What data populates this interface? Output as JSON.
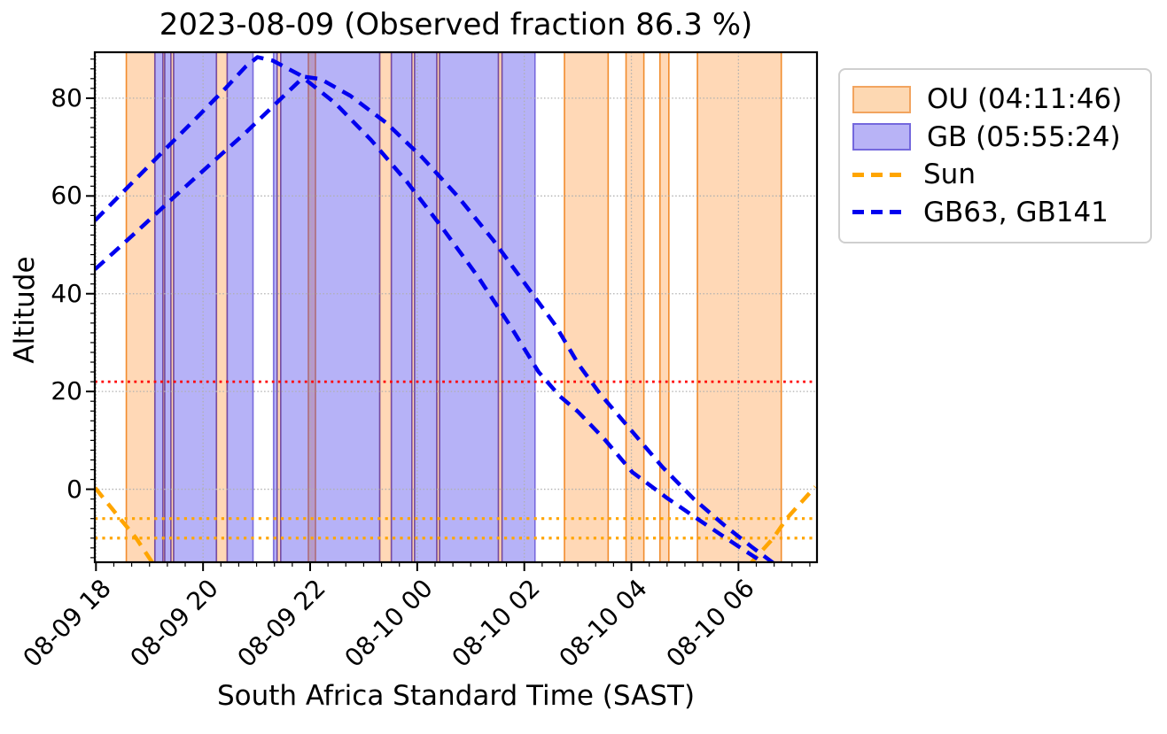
{
  "figure": {
    "title": "2023-08-09 (Observed fraction 86.3 %)",
    "xlabel": "South Africa Standard Time (SAST)",
    "ylabel": "Altitude"
  },
  "legend": {
    "items": [
      {
        "label": "OU (04:11:46)",
        "swatch": "patch",
        "fill": "#fdd8b2",
        "edge": "#f2a45f"
      },
      {
        "label": "GB (05:55:24)",
        "swatch": "patch",
        "fill": "#b8b3f6",
        "edge": "#7468dd"
      },
      {
        "label": "Sun",
        "swatch": "dashed-line",
        "color": "#ffa500"
      },
      {
        "label": "GB63, GB141",
        "swatch": "dashed-line",
        "color": "#0101ef"
      }
    ]
  },
  "chart_data": {
    "type": "area",
    "title": "2023-08-09 (Observed fraction 86.3 %)",
    "observed_fraction_percent": 86.3,
    "xlabel": "South Africa Standard Time (SAST)",
    "ylabel": "Altitude",
    "x_axis": {
      "ticks": [
        {
          "t_min": 0,
          "label": "08-09 18"
        },
        {
          "t_min": 120,
          "label": "08-09 20"
        },
        {
          "t_min": 240,
          "label": "08-09 22"
        },
        {
          "t_min": 360,
          "label": "08-10 00"
        },
        {
          "t_min": 480,
          "label": "08-10 02"
        },
        {
          "t_min": 600,
          "label": "08-10 04"
        },
        {
          "t_min": 720,
          "label": "08-10 06"
        }
      ],
      "minor_step_min": 20,
      "range_min_since_1800": [
        -1.3,
        808
      ]
    },
    "y_axis": {
      "ticks": [
        0,
        20,
        40,
        60,
        80
      ],
      "minor_step": 2,
      "range": [
        -14.93,
        89.4
      ]
    },
    "grid": {
      "on": true,
      "style": "dotted",
      "color": "#b0b0b0"
    },
    "ou_total": "04:11:46",
    "gb_total": "05:55:24",
    "ou_windows": [
      {
        "start": "18:34",
        "end": "19:06"
      },
      {
        "start": "19:15",
        "end": "19:17"
      },
      {
        "start": "19:24",
        "end": "19:27"
      },
      {
        "start": "20:15",
        "end": "20:27"
      },
      {
        "start": "21:23",
        "end": "21:27"
      },
      {
        "start": "21:58",
        "end": "22:06"
      },
      {
        "start": "23:18",
        "end": "23:31"
      },
      {
        "start": "23:54",
        "end": "23:57"
      },
      {
        "start": "00:22",
        "end": "00:25"
      },
      {
        "start": "01:31",
        "end": "01:35"
      },
      {
        "start": "02:45",
        "end": "03:34"
      },
      {
        "start": "03:54",
        "end": "04:14"
      },
      {
        "start": "04:32",
        "end": "04:42"
      },
      {
        "start": "05:14",
        "end": "06:48"
      }
    ],
    "gb_windows": [
      {
        "start": "19:06",
        "end": "19:15"
      },
      {
        "start": "19:17",
        "end": "19:24"
      },
      {
        "start": "19:27",
        "end": "20:15"
      },
      {
        "start": "20:27",
        "end": "20:56"
      },
      {
        "start": "21:19",
        "end": "21:23"
      },
      {
        "start": "21:27",
        "end": "23:18"
      },
      {
        "start": "23:31",
        "end": "23:54"
      },
      {
        "start": "23:57",
        "end": "00:22"
      },
      {
        "start": "00:25",
        "end": "01:31"
      },
      {
        "start": "01:35",
        "end": "02:12"
      }
    ],
    "horizontal_lines": [
      {
        "name": "elevation-limit",
        "alt": 22,
        "color": "#ff0000",
        "style": "dotted"
      },
      {
        "name": "sun-minus-6",
        "alt": -6,
        "color": "#ffa500",
        "style": "dotted"
      },
      {
        "name": "sun-minus-10",
        "alt": -10,
        "color": "#ffa500",
        "style": "dotted"
      }
    ],
    "sun_track": {
      "label": "Sun",
      "color": "#ffa500",
      "style": "dashed",
      "segments": [
        [
          [
            -1,
            0.3
          ],
          [
            27,
            -6
          ],
          [
            45,
            -10
          ],
          [
            65,
            -15.5
          ]
        ],
        [
          [
            732,
            -15.5
          ],
          [
            759,
            -10
          ],
          [
            774,
            -6
          ],
          [
            806,
            0.5
          ]
        ]
      ]
    },
    "target_tracks": {
      "label": "GB63, GB141",
      "color": "#0101ef",
      "style": "dashed",
      "curves": [
        {
          "name": "target-curve-a",
          "points": [
            [
              -1,
              55
            ],
            [
              40,
              62.6
            ],
            [
              80,
              70
            ],
            [
              115,
              76.4
            ],
            [
              145,
              82
            ],
            [
              168,
              86.5
            ],
            [
              181,
              88.4
            ],
            [
              198,
              87.7
            ],
            [
              228,
              84.8
            ],
            [
              268,
              79
            ],
            [
              308,
              71.5
            ],
            [
              348,
              63
            ],
            [
              388,
              53.5
            ],
            [
              428,
              43.5
            ],
            [
              464,
              33.5
            ],
            [
              496,
              24
            ],
            [
              520,
              19
            ],
            [
              540,
              15.9
            ],
            [
              570,
              10.2
            ],
            [
              601,
              3.5
            ],
            [
              640,
              -1.8
            ],
            [
              680,
              -6.8
            ],
            [
              720,
              -11.7
            ],
            [
              752,
              -15.5
            ]
          ]
        },
        {
          "name": "target-curve-b",
          "points": [
            [
              -1,
              45
            ],
            [
              45,
              52.6
            ],
            [
              90,
              60.2
            ],
            [
              130,
              66.8
            ],
            [
              168,
              73
            ],
            [
              205,
              79.5
            ],
            [
              233,
              84.4
            ],
            [
              252,
              83.9
            ],
            [
              285,
              80.5
            ],
            [
              325,
              75
            ],
            [
              365,
              68
            ],
            [
              405,
              60
            ],
            [
              445,
              51
            ],
            [
              485,
              41
            ],
            [
              515,
              33.5
            ],
            [
              541,
              25.5
            ],
            [
              565,
              19.5
            ],
            [
              600,
              12
            ],
            [
              635,
              4.5
            ],
            [
              670,
              -2
            ],
            [
              705,
              -7.5
            ],
            [
              735,
              -11.8
            ],
            [
              762,
              -15.5
            ]
          ]
        }
      ]
    },
    "colors": {
      "ou_fill": "rgba(255,133,27,0.32)",
      "ou_edge": "rgba(238,123,15,0.85)",
      "gb_fill": "rgba(72,62,235,0.40)",
      "gb_edge": "rgba(70,50,205,0.65)",
      "sun": "#ffa500",
      "targets": "#0101ef",
      "limit_line": "#ff0000",
      "twilight_line": "#ffa500",
      "grid": "#b0b0b0",
      "spine": "#000000"
    }
  }
}
